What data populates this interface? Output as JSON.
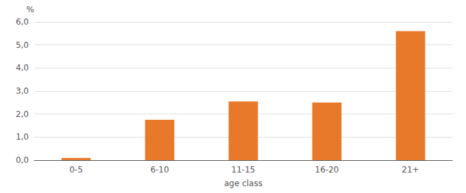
{
  "chart_data": {
    "type": "bar",
    "categories": [
      "0-5",
      "6-10",
      "11-15",
      "16-20",
      "21+"
    ],
    "values": [
      0.1,
      1.75,
      2.55,
      2.5,
      5.6
    ],
    "color": "#E8792A",
    "xlabel": "age class",
    "ylabel": "%",
    "ylim": [
      0,
      6.0
    ],
    "yticks": [
      {
        "value": 0.0,
        "label": "0,0"
      },
      {
        "value": 1.0,
        "label": "1,0"
      },
      {
        "value": 2.0,
        "label": "2,0"
      },
      {
        "value": 3.0,
        "label": "3,0"
      },
      {
        "value": 4.0,
        "label": "4,0"
      },
      {
        "value": 5.0,
        "label": "5,0"
      },
      {
        "value": 6.0,
        "label": "6,0"
      }
    ],
    "grid": true
  }
}
